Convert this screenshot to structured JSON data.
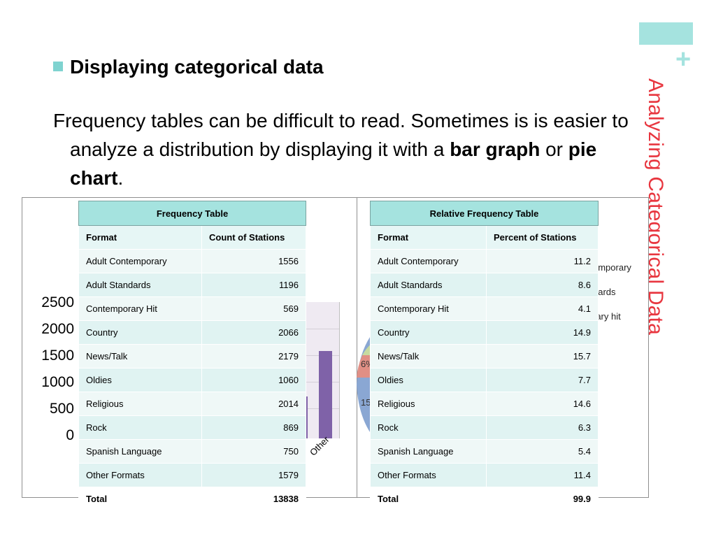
{
  "slide": {
    "title": "Analyzing Categorical Data",
    "plus": "+",
    "heading": "Displaying categorical data",
    "body": {
      "part1": "Frequency tables can be difficult to read.  Sometimes is is easier to analyze a distribution by displaying it with a ",
      "bold1": "bar graph",
      "part2": " or ",
      "bold2": "pie chart",
      "part3": "."
    },
    "accent_color": "#a5e3df",
    "title_color": "#e8363f"
  },
  "background_chart": {
    "y_tick_labels": [
      "2500",
      "2000",
      "1500",
      "1000",
      "500",
      "0"
    ],
    "visible_category": "Other",
    "pie_labels": [
      "6%",
      "15"
    ],
    "legend_fragments": [
      "emporary",
      "dards",
      "rary hit"
    ]
  },
  "frequency_table": {
    "title": "Frequency Table",
    "headers": [
      "Format",
      "Count of Stations"
    ],
    "rows": [
      [
        "Adult Contemporary",
        "1556"
      ],
      [
        "Adult Standards",
        "1196"
      ],
      [
        "Contemporary Hit",
        "569"
      ],
      [
        "Country",
        "2066"
      ],
      [
        "News/Talk",
        "2179"
      ],
      [
        "Oldies",
        "1060"
      ],
      [
        "Religious",
        "2014"
      ],
      [
        "Rock",
        "869"
      ],
      [
        "Spanish Language",
        "750"
      ],
      [
        "Other Formats",
        "1579"
      ]
    ],
    "total": [
      "Total",
      "13838"
    ]
  },
  "relative_table": {
    "title": "Relative Frequency Table",
    "headers": [
      "Format",
      "Percent of Stations"
    ],
    "rows": [
      [
        "Adult Contemporary",
        "11.2"
      ],
      [
        "Adult Standards",
        "8.6"
      ],
      [
        "Contemporary Hit",
        "4.1"
      ],
      [
        "Country",
        "14.9"
      ],
      [
        "News/Talk",
        "15.7"
      ],
      [
        "Oldies",
        "7.7"
      ],
      [
        "Religious",
        "14.6"
      ],
      [
        "Rock",
        "6.3"
      ],
      [
        "Spanish Language",
        "5.4"
      ],
      [
        "Other Formats",
        "11.4"
      ]
    ],
    "total": [
      "Total",
      "99.9"
    ]
  }
}
